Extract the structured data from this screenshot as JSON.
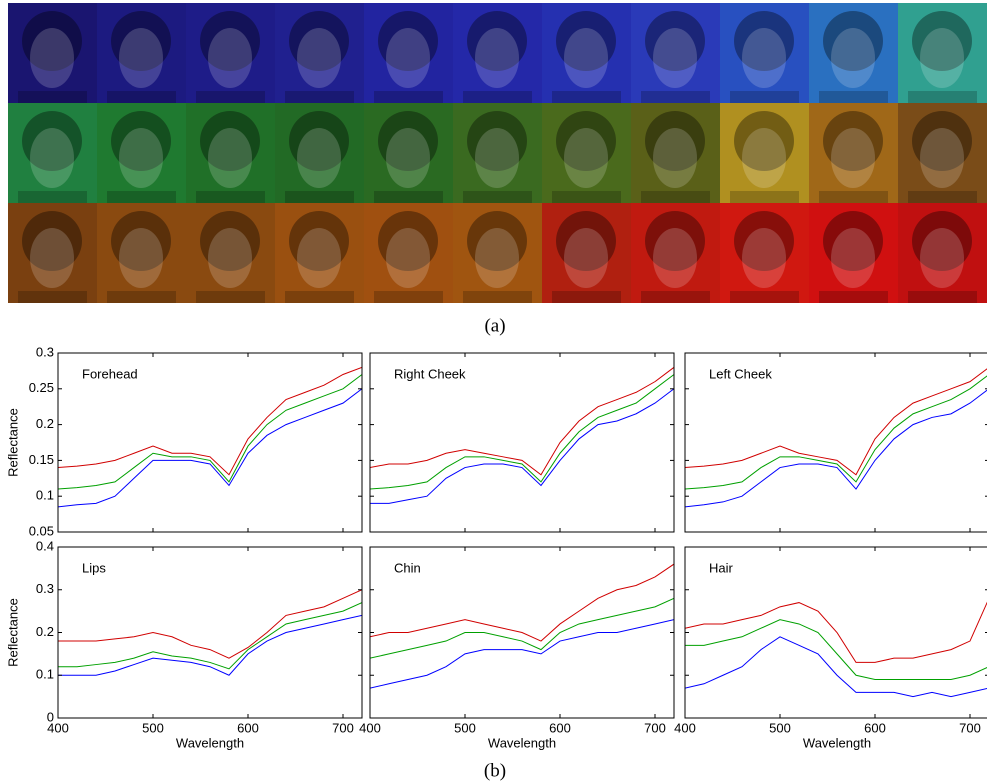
{
  "figure": {
    "caption_a": "(a)",
    "caption_b": "(b)"
  },
  "chart_data": [
    {
      "type": "line",
      "title": "Forehead",
      "ylabel": "Reflectance",
      "show_xticklabels": false,
      "show_yticklabels": true,
      "x": [
        400,
        420,
        440,
        460,
        480,
        500,
        520,
        540,
        560,
        580,
        600,
        620,
        640,
        660,
        680,
        700,
        720
      ],
      "xlim": [
        400,
        720
      ],
      "xticks": [
        400,
        500,
        600,
        700
      ],
      "ylim": [
        0.05,
        0.3
      ],
      "yticks": [
        0.05,
        0.1,
        0.15,
        0.2,
        0.25,
        0.3
      ],
      "series": [
        {
          "color": "#0000ff",
          "values": [
            0.085,
            0.088,
            0.09,
            0.1,
            0.125,
            0.15,
            0.15,
            0.15,
            0.145,
            0.115,
            0.16,
            0.185,
            0.2,
            0.21,
            0.22,
            0.23,
            0.25
          ]
        },
        {
          "color": "#00a000",
          "values": [
            0.11,
            0.112,
            0.115,
            0.12,
            0.14,
            0.16,
            0.155,
            0.155,
            0.15,
            0.12,
            0.17,
            0.2,
            0.22,
            0.23,
            0.24,
            0.25,
            0.27
          ]
        },
        {
          "color": "#d00000",
          "values": [
            0.14,
            0.142,
            0.145,
            0.15,
            0.16,
            0.17,
            0.16,
            0.16,
            0.155,
            0.13,
            0.18,
            0.21,
            0.235,
            0.245,
            0.255,
            0.27,
            0.28
          ]
        }
      ]
    },
    {
      "type": "line",
      "title": "Right Cheek",
      "show_xticklabels": false,
      "show_yticklabels": false,
      "x": [
        400,
        420,
        440,
        460,
        480,
        500,
        520,
        540,
        560,
        580,
        600,
        620,
        640,
        660,
        680,
        700,
        720
      ],
      "xlim": [
        400,
        720
      ],
      "xticks": [
        400,
        500,
        600,
        700
      ],
      "ylim": [
        0.05,
        0.3
      ],
      "yticks": [
        0.05,
        0.1,
        0.15,
        0.2,
        0.25,
        0.3
      ],
      "series": [
        {
          "color": "#0000ff",
          "values": [
            0.09,
            0.09,
            0.095,
            0.1,
            0.125,
            0.14,
            0.145,
            0.145,
            0.14,
            0.115,
            0.15,
            0.18,
            0.2,
            0.205,
            0.215,
            0.23,
            0.25
          ]
        },
        {
          "color": "#00a000",
          "values": [
            0.11,
            0.112,
            0.115,
            0.12,
            0.14,
            0.155,
            0.155,
            0.15,
            0.145,
            0.12,
            0.16,
            0.19,
            0.21,
            0.22,
            0.23,
            0.25,
            0.27
          ]
        },
        {
          "color": "#d00000",
          "values": [
            0.14,
            0.145,
            0.145,
            0.15,
            0.16,
            0.165,
            0.16,
            0.155,
            0.15,
            0.13,
            0.175,
            0.205,
            0.225,
            0.235,
            0.245,
            0.26,
            0.28
          ]
        }
      ]
    },
    {
      "type": "line",
      "title": "Left Cheek",
      "show_xticklabels": false,
      "show_yticklabels": false,
      "x": [
        400,
        420,
        440,
        460,
        480,
        500,
        520,
        540,
        560,
        580,
        600,
        620,
        640,
        660,
        680,
        700,
        720
      ],
      "xlim": [
        400,
        720
      ],
      "xticks": [
        400,
        500,
        600,
        700
      ],
      "ylim": [
        0.05,
        0.3
      ],
      "yticks": [
        0.05,
        0.1,
        0.15,
        0.2,
        0.25,
        0.3
      ],
      "series": [
        {
          "color": "#0000ff",
          "values": [
            0.085,
            0.088,
            0.092,
            0.1,
            0.12,
            0.14,
            0.145,
            0.145,
            0.14,
            0.11,
            0.15,
            0.18,
            0.2,
            0.21,
            0.215,
            0.23,
            0.25
          ]
        },
        {
          "color": "#00a000",
          "values": [
            0.11,
            0.112,
            0.115,
            0.12,
            0.14,
            0.155,
            0.155,
            0.15,
            0.145,
            0.12,
            0.165,
            0.195,
            0.215,
            0.225,
            0.235,
            0.25,
            0.27
          ]
        },
        {
          "color": "#d00000",
          "values": [
            0.14,
            0.142,
            0.145,
            0.15,
            0.16,
            0.17,
            0.16,
            0.155,
            0.15,
            0.13,
            0.18,
            0.21,
            0.23,
            0.24,
            0.25,
            0.26,
            0.28
          ]
        }
      ]
    },
    {
      "type": "line",
      "title": "Lips",
      "ylabel": "Reflectance",
      "xlabel": "Wavelength",
      "show_xticklabels": true,
      "show_yticklabels": true,
      "x": [
        400,
        420,
        440,
        460,
        480,
        500,
        520,
        540,
        560,
        580,
        600,
        620,
        640,
        660,
        680,
        700,
        720
      ],
      "xlim": [
        400,
        720
      ],
      "xticks": [
        400,
        500,
        600,
        700
      ],
      "ylim": [
        0,
        0.4
      ],
      "yticks": [
        0,
        0.1,
        0.2,
        0.3,
        0.4
      ],
      "series": [
        {
          "color": "#0000ff",
          "values": [
            0.1,
            0.1,
            0.1,
            0.11,
            0.125,
            0.14,
            0.135,
            0.13,
            0.12,
            0.1,
            0.15,
            0.18,
            0.2,
            0.21,
            0.22,
            0.23,
            0.24
          ]
        },
        {
          "color": "#00a000",
          "values": [
            0.12,
            0.12,
            0.125,
            0.13,
            0.14,
            0.155,
            0.145,
            0.14,
            0.13,
            0.115,
            0.16,
            0.19,
            0.22,
            0.23,
            0.24,
            0.25,
            0.27
          ]
        },
        {
          "color": "#d00000",
          "values": [
            0.18,
            0.18,
            0.18,
            0.185,
            0.19,
            0.2,
            0.19,
            0.17,
            0.16,
            0.14,
            0.165,
            0.2,
            0.24,
            0.25,
            0.26,
            0.28,
            0.3
          ]
        }
      ]
    },
    {
      "type": "line",
      "title": "Chin",
      "xlabel": "Wavelength",
      "show_xticklabels": true,
      "show_yticklabels": false,
      "x": [
        400,
        420,
        440,
        460,
        480,
        500,
        520,
        540,
        560,
        580,
        600,
        620,
        640,
        660,
        680,
        700,
        720
      ],
      "xlim": [
        400,
        720
      ],
      "xticks": [
        400,
        500,
        600,
        700
      ],
      "ylim": [
        0,
        0.4
      ],
      "yticks": [
        0,
        0.1,
        0.2,
        0.3,
        0.4
      ],
      "series": [
        {
          "color": "#0000ff",
          "values": [
            0.07,
            0.08,
            0.09,
            0.1,
            0.12,
            0.15,
            0.16,
            0.16,
            0.16,
            0.15,
            0.18,
            0.19,
            0.2,
            0.2,
            0.21,
            0.22,
            0.23
          ]
        },
        {
          "color": "#00a000",
          "values": [
            0.14,
            0.15,
            0.16,
            0.17,
            0.18,
            0.2,
            0.2,
            0.19,
            0.18,
            0.16,
            0.2,
            0.22,
            0.23,
            0.24,
            0.25,
            0.26,
            0.28
          ]
        },
        {
          "color": "#d00000",
          "values": [
            0.19,
            0.2,
            0.2,
            0.21,
            0.22,
            0.23,
            0.22,
            0.21,
            0.2,
            0.18,
            0.22,
            0.25,
            0.28,
            0.3,
            0.31,
            0.33,
            0.36
          ]
        }
      ]
    },
    {
      "type": "line",
      "title": "Hair",
      "xlabel": "Wavelength",
      "show_xticklabels": true,
      "show_yticklabels": false,
      "x": [
        400,
        420,
        440,
        460,
        480,
        500,
        520,
        540,
        560,
        580,
        600,
        620,
        640,
        660,
        680,
        700,
        720
      ],
      "xlim": [
        400,
        720
      ],
      "xticks": [
        400,
        500,
        600,
        700
      ],
      "ylim": [
        0,
        0.4
      ],
      "yticks": [
        0,
        0.1,
        0.2,
        0.3,
        0.4
      ],
      "series": [
        {
          "color": "#0000ff",
          "values": [
            0.07,
            0.08,
            0.1,
            0.12,
            0.16,
            0.19,
            0.17,
            0.15,
            0.1,
            0.06,
            0.06,
            0.06,
            0.05,
            0.06,
            0.05,
            0.06,
            0.07
          ]
        },
        {
          "color": "#00a000",
          "values": [
            0.17,
            0.17,
            0.18,
            0.19,
            0.21,
            0.23,
            0.22,
            0.2,
            0.15,
            0.1,
            0.09,
            0.09,
            0.09,
            0.09,
            0.09,
            0.1,
            0.12
          ]
        },
        {
          "color": "#d00000",
          "values": [
            0.21,
            0.22,
            0.22,
            0.23,
            0.24,
            0.26,
            0.27,
            0.25,
            0.2,
            0.13,
            0.13,
            0.14,
            0.14,
            0.15,
            0.16,
            0.18,
            0.28
          ]
        }
      ]
    }
  ]
}
